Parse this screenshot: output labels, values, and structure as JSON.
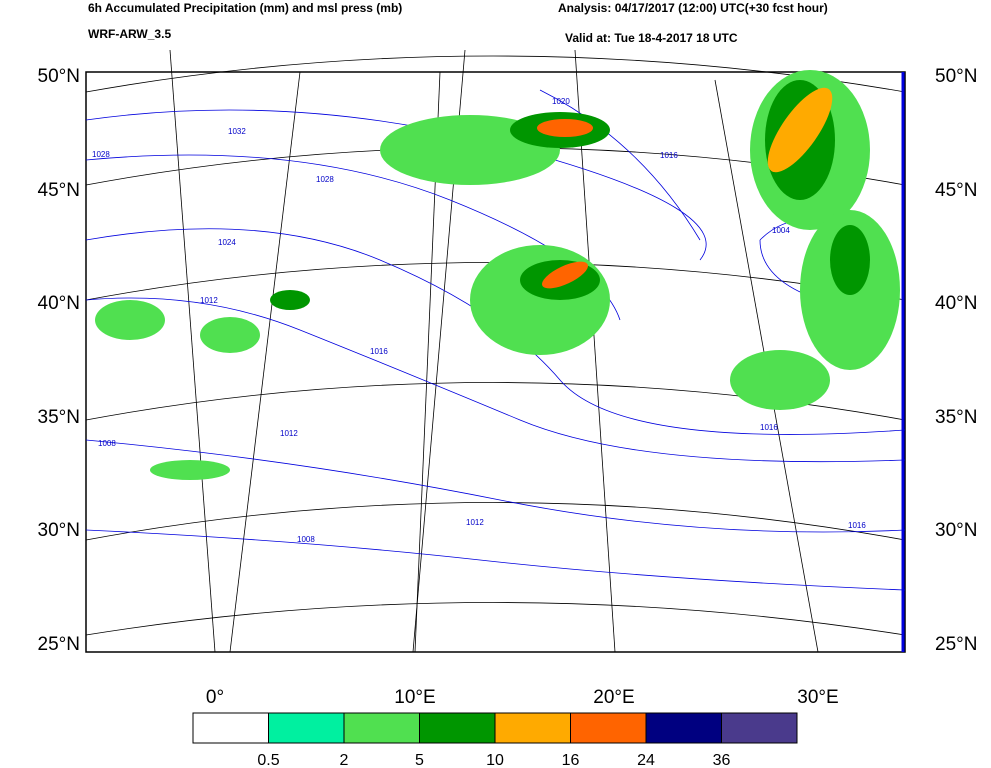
{
  "header": {
    "title": "6h Accumulated Precipitation (mm) and msl press (mb)",
    "model": "WRF-ARW_3.5",
    "analysis": "Analysis: 04/17/2017 (12:00) UTC(+30 fcst hour)",
    "valid": "Valid at: Tue 18-4-2017  18 UTC"
  },
  "map": {
    "lat_labels": [
      "50°N",
      "45°N",
      "40°N",
      "35°N",
      "30°N",
      "25°N"
    ],
    "lon_labels": [
      "0°",
      "10°E",
      "20°E",
      "30°E"
    ],
    "isobar_labels": [
      "1032",
      "1028",
      "1028",
      "1024",
      "1020",
      "1016",
      "1016",
      "1012",
      "1012",
      "1008",
      "1008",
      "1016",
      "1012",
      "1016",
      "1004"
    ]
  },
  "legend": {
    "colors": [
      "#ffffff",
      "#00f0a0",
      "#50e050",
      "#009600",
      "#ffaa00",
      "#ff6400",
      "#000080",
      "#4a3a8c"
    ],
    "labels": [
      0.5,
      2,
      5,
      10,
      16,
      24,
      36
    ]
  }
}
